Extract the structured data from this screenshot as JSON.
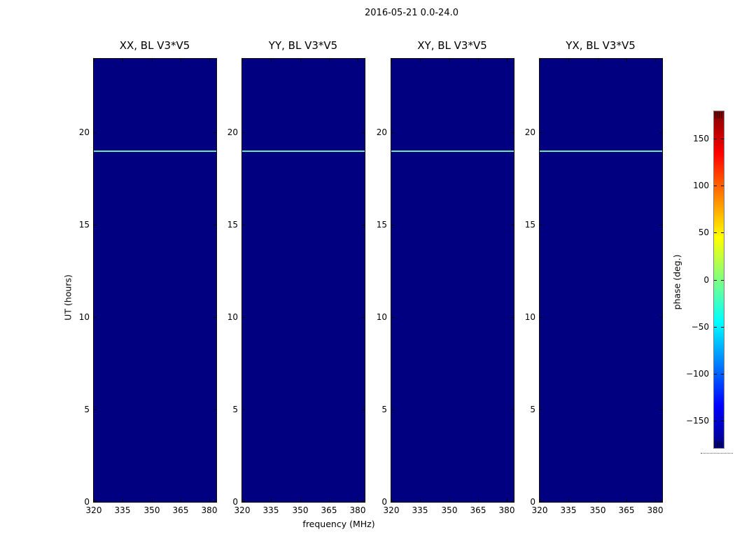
{
  "figure": {
    "title": "2016-05-21 0.0-24.0"
  },
  "chart_data": {
    "type": "heatmap",
    "title": "2016-05-21 0.0-24.0",
    "panels": [
      {
        "title": "XX, BL V3*V5"
      },
      {
        "title": "YY, BL V3*V5"
      },
      {
        "title": "XY, BL V3*V5"
      },
      {
        "title": "YX, BL V3*V5"
      }
    ],
    "x": {
      "label": "frequency (MHz)",
      "ticks": [
        320,
        335,
        350,
        365,
        380
      ],
      "tick_labels": [
        "320",
        "335",
        "350",
        "365",
        "380"
      ],
      "lim": [
        320,
        383.6
      ]
    },
    "y": {
      "label": "UT (hours)",
      "ticks": [
        0,
        5,
        10,
        15,
        20
      ],
      "tick_labels": [
        "0",
        "5",
        "10",
        "15",
        "20"
      ],
      "lim": [
        0,
        24
      ]
    },
    "background_phase_deg": -180,
    "background_color": "#000080",
    "feature": {
      "type": "horizontal-line",
      "ut_hours": 19.0,
      "approx_phase_deg": -25,
      "color": "#6fe8a6",
      "present_in_all_panels": true
    },
    "colorbar": {
      "label": "phase (deg.)",
      "ticks": [
        150,
        100,
        50,
        0,
        -50,
        -100,
        -150
      ],
      "tick_labels": [
        "150",
        "100",
        "50",
        "0",
        "−50",
        "−100",
        "−150"
      ],
      "lim": [
        -180,
        180
      ],
      "colormap": "jet",
      "legend_position": "right"
    },
    "grid": false
  }
}
